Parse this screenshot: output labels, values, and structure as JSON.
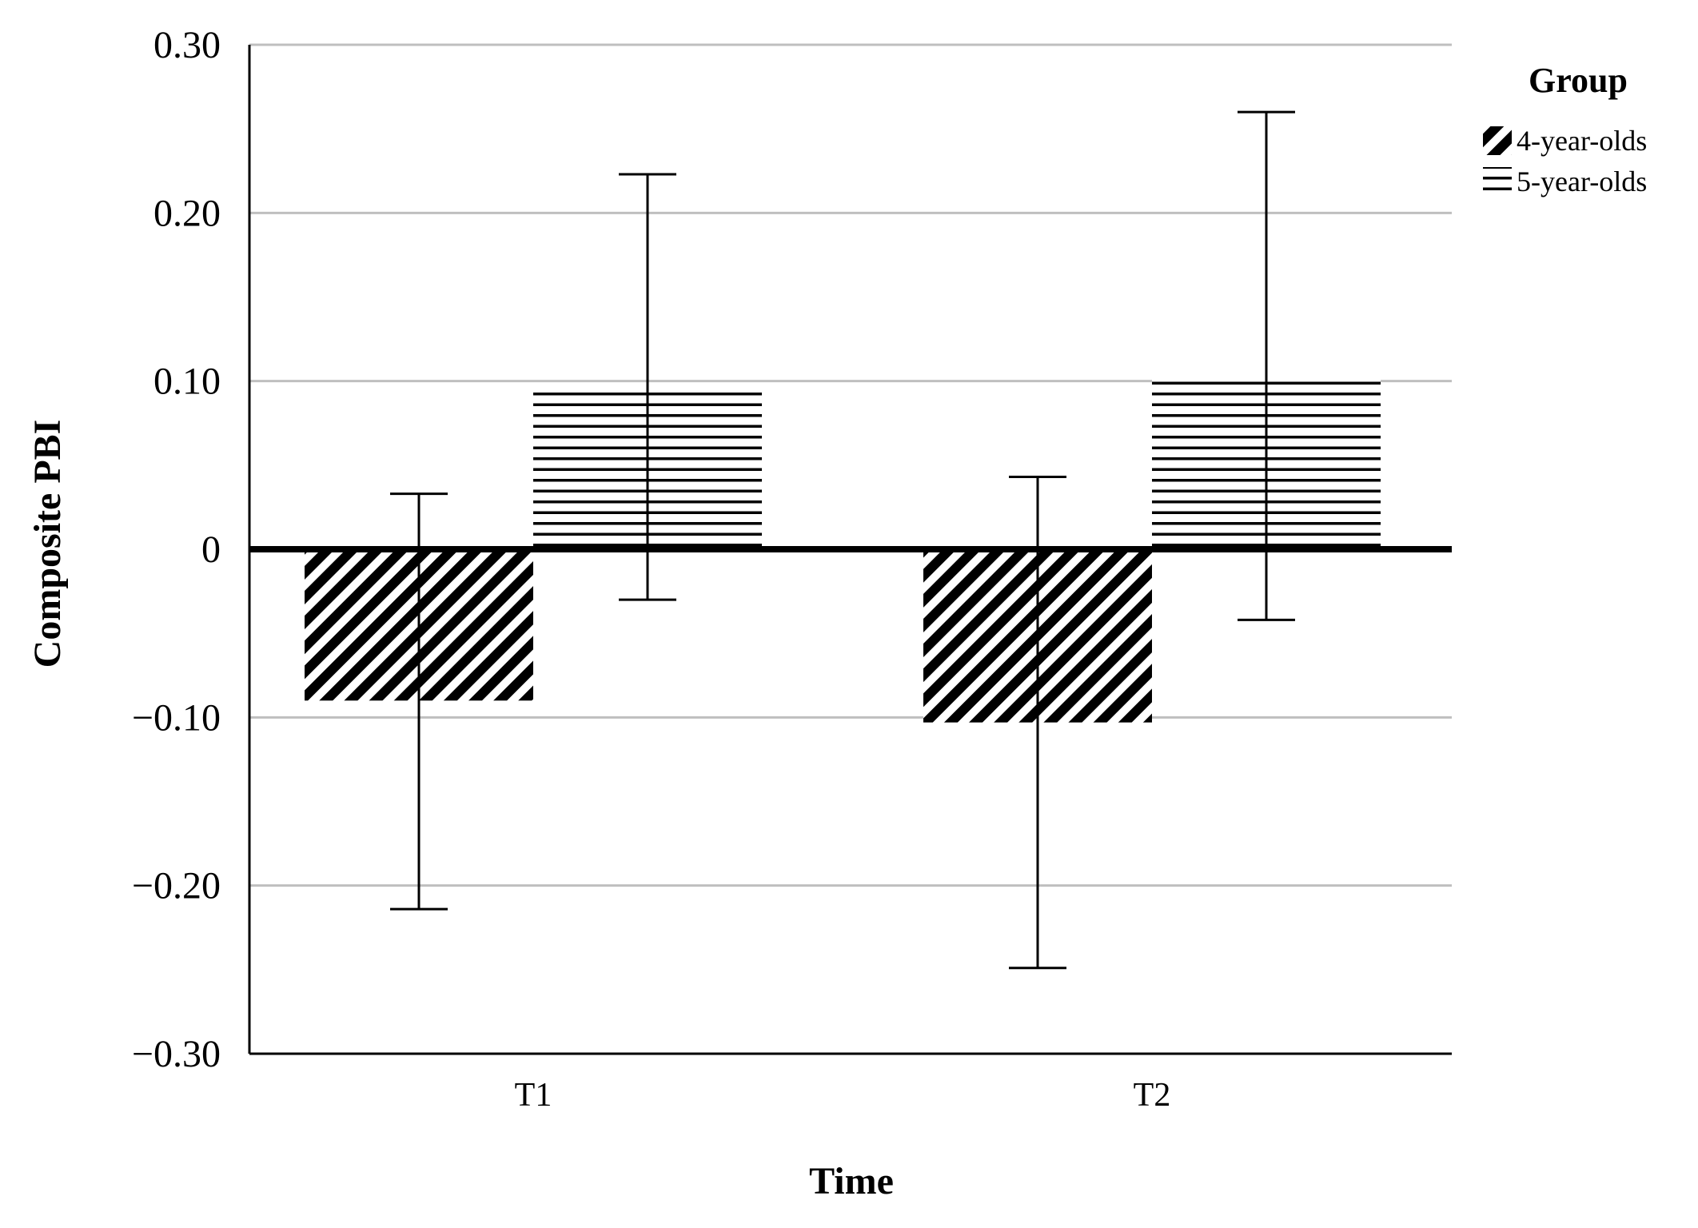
{
  "chart_data": {
    "type": "bar",
    "title": "",
    "xlabel": "Time",
    "ylabel": "Composite PBI",
    "categories": [
      "T1",
      "T2"
    ],
    "ylim": [
      -0.3,
      0.3
    ],
    "yticks": [
      0.3,
      0.2,
      0.1,
      0,
      -0.1,
      -0.2,
      -0.3
    ],
    "ytick_labels": [
      "0.30",
      "0.20",
      "0.10",
      "0",
      "−0.10",
      "−0.20",
      "−0.30"
    ],
    "grid": true,
    "legend": {
      "title": "Group",
      "position": "top-right"
    },
    "series": [
      {
        "name": "4-year-olds",
        "pattern": "diagonal-hatch",
        "values": [
          -0.09,
          -0.103
        ],
        "error_low": [
          -0.214,
          -0.249
        ],
        "error_high": [
          0.033,
          0.043
        ]
      },
      {
        "name": "5-year-olds",
        "pattern": "horizontal-hatch",
        "values": [
          0.097,
          0.101
        ],
        "error_low": [
          -0.03,
          -0.042
        ],
        "error_high": [
          0.223,
          0.26
        ]
      }
    ],
    "colors": {
      "ink": "#000000",
      "grid": "#bfbfbf",
      "background": "#ffffff"
    }
  }
}
